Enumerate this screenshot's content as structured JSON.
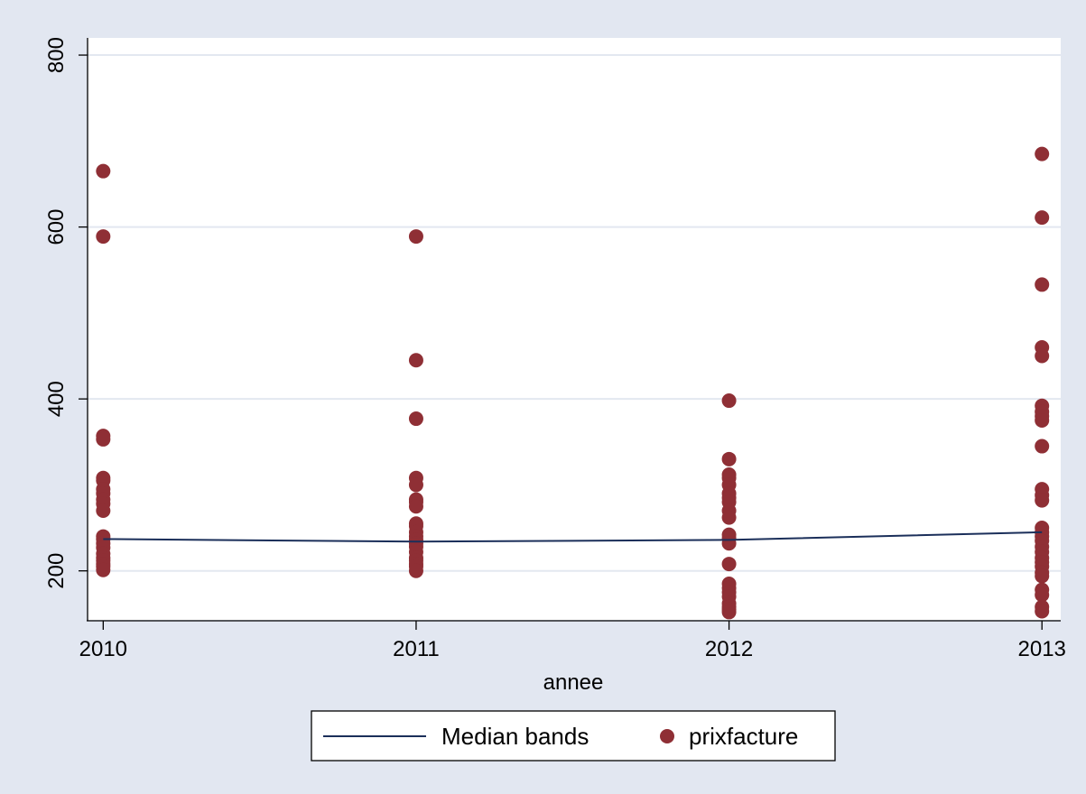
{
  "chart_data": {
    "type": "scatter",
    "title": "",
    "xlabel": "annee",
    "ylabel": "",
    "x_ticks": [
      "2010",
      "2011",
      "2012",
      "2013"
    ],
    "x_range": [
      2009.95,
      2013.06
    ],
    "y_ticks": [
      "200",
      "400",
      "600",
      "800"
    ],
    "y_range": [
      143,
      820
    ],
    "grid": "horizontal",
    "legend_position": "bottom",
    "colors": {
      "outer_background": "#e2e7f1",
      "plot_background": "#ffffff",
      "grid": "#e3e8f0",
      "median_line": "#1b2f5a",
      "points": "#8f2f35"
    },
    "series": [
      {
        "name": "Median bands",
        "kind": "line",
        "x": [
          2010,
          2011,
          2012,
          2013
        ],
        "y": [
          237,
          234,
          236,
          245
        ]
      },
      {
        "name": "prixfacture",
        "kind": "scatter",
        "points": [
          [
            2010,
            665
          ],
          [
            2010,
            589
          ],
          [
            2010,
            357
          ],
          [
            2010,
            353
          ],
          [
            2010,
            308
          ],
          [
            2010,
            305
          ],
          [
            2010,
            295
          ],
          [
            2010,
            290
          ],
          [
            2010,
            283
          ],
          [
            2010,
            278
          ],
          [
            2010,
            270
          ],
          [
            2010,
            240
          ],
          [
            2010,
            237
          ],
          [
            2010,
            232
          ],
          [
            2010,
            227
          ],
          [
            2010,
            220
          ],
          [
            2010,
            215
          ],
          [
            2010,
            212
          ],
          [
            2010,
            208
          ],
          [
            2010,
            205
          ],
          [
            2010,
            201
          ],
          [
            2011,
            589
          ],
          [
            2011,
            445
          ],
          [
            2011,
            377
          ],
          [
            2011,
            308
          ],
          [
            2011,
            300
          ],
          [
            2011,
            283
          ],
          [
            2011,
            280
          ],
          [
            2011,
            275
          ],
          [
            2011,
            255
          ],
          [
            2011,
            252
          ],
          [
            2011,
            245
          ],
          [
            2011,
            240
          ],
          [
            2011,
            236
          ],
          [
            2011,
            232
          ],
          [
            2011,
            228
          ],
          [
            2011,
            222
          ],
          [
            2011,
            215
          ],
          [
            2011,
            212
          ],
          [
            2011,
            208
          ],
          [
            2011,
            205
          ],
          [
            2011,
            200
          ],
          [
            2012,
            398
          ],
          [
            2012,
            330
          ],
          [
            2012,
            312
          ],
          [
            2012,
            308
          ],
          [
            2012,
            300
          ],
          [
            2012,
            290
          ],
          [
            2012,
            285
          ],
          [
            2012,
            280
          ],
          [
            2012,
            270
          ],
          [
            2012,
            262
          ],
          [
            2012,
            242
          ],
          [
            2012,
            238
          ],
          [
            2012,
            232
          ],
          [
            2012,
            208
          ],
          [
            2012,
            185
          ],
          [
            2012,
            180
          ],
          [
            2012,
            175
          ],
          [
            2012,
            170
          ],
          [
            2012,
            162
          ],
          [
            2012,
            158
          ],
          [
            2012,
            155
          ],
          [
            2012,
            152
          ],
          [
            2013,
            685
          ],
          [
            2013,
            611
          ],
          [
            2013,
            533
          ],
          [
            2013,
            460
          ],
          [
            2013,
            450
          ],
          [
            2013,
            392
          ],
          [
            2013,
            385
          ],
          [
            2013,
            380
          ],
          [
            2013,
            375
          ],
          [
            2013,
            345
          ],
          [
            2013,
            295
          ],
          [
            2013,
            288
          ],
          [
            2013,
            282
          ],
          [
            2013,
            250
          ],
          [
            2013,
            245
          ],
          [
            2013,
            240
          ],
          [
            2013,
            235
          ],
          [
            2013,
            228
          ],
          [
            2013,
            222
          ],
          [
            2013,
            215
          ],
          [
            2013,
            210
          ],
          [
            2013,
            205
          ],
          [
            2013,
            198
          ],
          [
            2013,
            194
          ],
          [
            2013,
            178
          ],
          [
            2013,
            172
          ],
          [
            2013,
            158
          ],
          [
            2013,
            153
          ]
        ]
      }
    ]
  }
}
